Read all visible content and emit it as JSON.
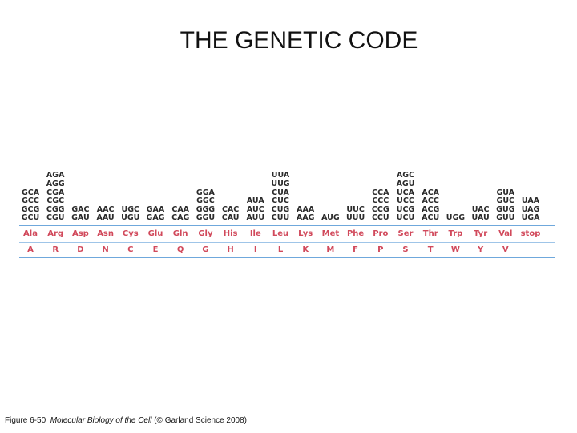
{
  "title": "THE GENETIC CODE",
  "amino_acids": [
    {
      "abbr": "Ala",
      "letter": "A",
      "codons": [
        "GCA",
        "GCC",
        "GCG",
        "GCU"
      ]
    },
    {
      "abbr": "Arg",
      "letter": "R",
      "codons": [
        "AGA",
        "AGG",
        "CGA",
        "CGC",
        "CGG",
        "CGU"
      ]
    },
    {
      "abbr": "Asp",
      "letter": "D",
      "codons": [
        "GAC",
        "GAU"
      ]
    },
    {
      "abbr": "Asn",
      "letter": "N",
      "codons": [
        "AAC",
        "AAU"
      ]
    },
    {
      "abbr": "Cys",
      "letter": "C",
      "codons": [
        "UGC",
        "UGU"
      ]
    },
    {
      "abbr": "Glu",
      "letter": "E",
      "codons": [
        "GAA",
        "GAG"
      ]
    },
    {
      "abbr": "Gln",
      "letter": "Q",
      "codons": [
        "CAA",
        "CAG"
      ]
    },
    {
      "abbr": "Gly",
      "letter": "G",
      "codons": [
        "GGA",
        "GGC",
        "GGG",
        "GGU"
      ]
    },
    {
      "abbr": "His",
      "letter": "H",
      "codons": [
        "CAC",
        "CAU"
      ]
    },
    {
      "abbr": "Ile",
      "letter": "I",
      "codons": [
        "AUA",
        "AUC",
        "AUU"
      ]
    },
    {
      "abbr": "Leu",
      "letter": "L",
      "codons": [
        "UUA",
        "UUG",
        "CUA",
        "CUC",
        "CUG",
        "CUU"
      ]
    },
    {
      "abbr": "Lys",
      "letter": "K",
      "codons": [
        "AAA",
        "AAG"
      ]
    },
    {
      "abbr": "Met",
      "letter": "M",
      "codons": [
        "AUG"
      ]
    },
    {
      "abbr": "Phe",
      "letter": "F",
      "codons": [
        "UUC",
        "UUU"
      ]
    },
    {
      "abbr": "Pro",
      "letter": "P",
      "codons": [
        "CCA",
        "CCC",
        "CCG",
        "CCU"
      ]
    },
    {
      "abbr": "Ser",
      "letter": "S",
      "codons": [
        "AGC",
        "AGU",
        "UCA",
        "UCC",
        "UCG",
        "UCU"
      ]
    },
    {
      "abbr": "Thr",
      "letter": "T",
      "codons": [
        "ACA",
        "ACC",
        "ACG",
        "ACU"
      ]
    },
    {
      "abbr": "Trp",
      "letter": "W",
      "codons": [
        "UGG"
      ]
    },
    {
      "abbr": "Tyr",
      "letter": "Y",
      "codons": [
        "UAC",
        "UAU"
      ]
    },
    {
      "abbr": "Val",
      "letter": "V",
      "codons": [
        "GUA",
        "GUC",
        "GUG",
        "GUU"
      ]
    },
    {
      "abbr": "stop",
      "letter": "",
      "codons": [
        "UAA",
        "UAG",
        "UGA"
      ]
    }
  ],
  "caption": {
    "figure": "Figure 6-50",
    "book": "Molecular Biology of the Cell",
    "credit": "(© Garland Science 2008)"
  },
  "colors": {
    "amino_acid_text": "#d1495b",
    "rule_lines": "#6fa8dc",
    "codon_text": "#2b2b2b"
  }
}
